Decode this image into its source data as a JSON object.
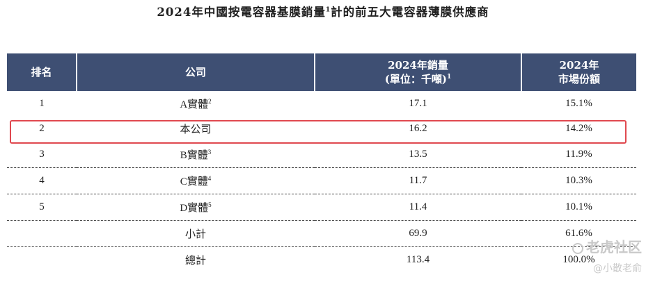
{
  "title": {
    "main": "2024年中國按電容器基膜銷量",
    "sup": "1",
    "rest": "計的前五大電容器薄膜供應商"
  },
  "headers": {
    "rank": "排名",
    "company": "公司",
    "sales_line1": "2024年銷量",
    "sales_line2": "(單位：千噸)",
    "sales_sup": "1",
    "share_line1": "2024年",
    "share_line2": "市場份額"
  },
  "rows": [
    {
      "rank": "1",
      "company": "A實體",
      "sup": "2",
      "sales": "17.1",
      "share": "15.1%"
    },
    {
      "rank": "2",
      "company": "本公司",
      "sup": "",
      "sales": "16.2",
      "share": "14.2%"
    },
    {
      "rank": "3",
      "company": "B實體",
      "sup": "3",
      "sales": "13.5",
      "share": "11.9%"
    },
    {
      "rank": "4",
      "company": "C實體",
      "sup": "4",
      "sales": "11.7",
      "share": "10.3%"
    },
    {
      "rank": "5",
      "company": "D實體",
      "sup": "5",
      "sales": "11.4",
      "share": "10.1%"
    },
    {
      "rank": "",
      "company": "小計",
      "sup": "",
      "sales": "69.9",
      "share": "61.6%"
    },
    {
      "rank": "",
      "company": "總計",
      "sup": "",
      "sales": "113.4",
      "share": "100.0%"
    }
  ],
  "watermark": {
    "line1": "老虎社区",
    "line2": "@小散老俞"
  },
  "colors": {
    "header_bg": "#3e4f73",
    "highlight": "#e0484f"
  }
}
